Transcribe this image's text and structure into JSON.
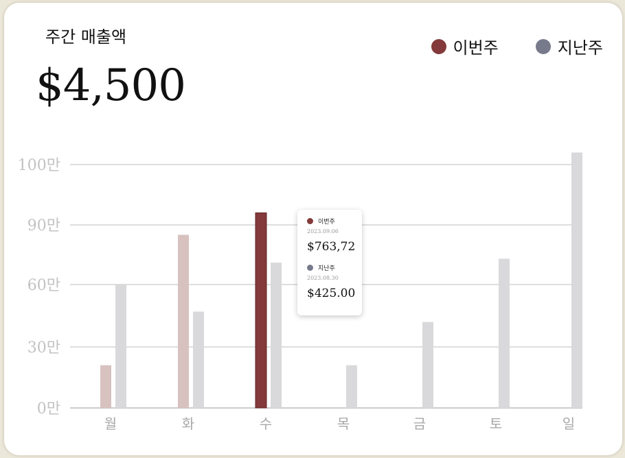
{
  "card": {
    "title": "주간 매출액",
    "total": "$4,500"
  },
  "legend": {
    "items": [
      {
        "label": "이번주",
        "color": "#843a3a"
      },
      {
        "label": "지난주",
        "color": "#777a8b"
      }
    ]
  },
  "tooltip": {
    "entries": [
      {
        "series": "이번주",
        "date": "2023.09.06",
        "value": "$763,72",
        "color": "#843a3a"
      },
      {
        "series": "지난주",
        "date": "2023.08.30",
        "value": "$425.00",
        "color": "#777a8b"
      }
    ]
  },
  "chart_data": {
    "type": "bar",
    "categories": [
      "월",
      "화",
      "수",
      "목",
      "금",
      "토",
      "일"
    ],
    "series": [
      {
        "name": "이번주",
        "values": [
          21,
          85,
          92,
          null,
          null,
          null,
          null
        ],
        "color": "#843a3a",
        "faded_color": "#d7c2c0"
      },
      {
        "name": "지난주",
        "values": [
          60,
          47,
          71,
          21,
          42,
          73,
          102
        ],
        "color": "#d9d9db"
      }
    ],
    "highlighted_category": "수",
    "y_ticks": [
      0,
      30,
      60,
      90,
      100
    ],
    "y_tick_labels": [
      "0만",
      "30만",
      "60만",
      "90만",
      "100만"
    ],
    "grid": true,
    "legend_position": "top-right",
    "title": "",
    "xlabel": "",
    "ylabel": ""
  }
}
